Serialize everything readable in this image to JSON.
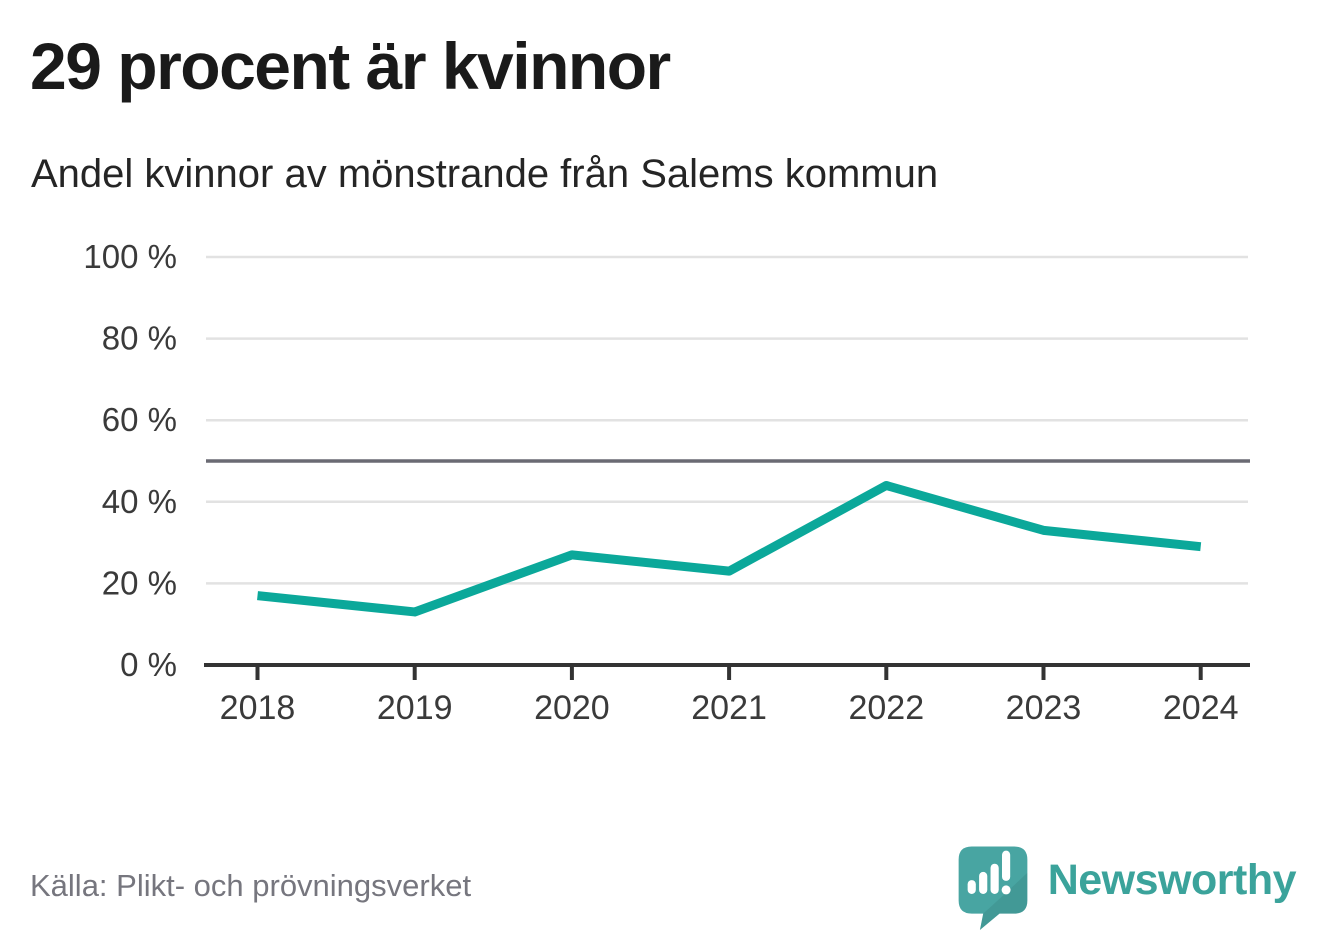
{
  "header": {
    "title": "29 procent är kvinnor",
    "subtitle": "Andel kvinnor av mönstrande från Salems kommun"
  },
  "chart_data": {
    "type": "line",
    "x": [
      "2018",
      "2019",
      "2020",
      "2021",
      "2022",
      "2023",
      "2024"
    ],
    "series": [
      {
        "name": "Andel kvinnor",
        "values": [
          17,
          13,
          27,
          23,
          44,
          33,
          29
        ]
      }
    ],
    "unit": "%",
    "title": "29 procent är kvinnor",
    "subtitle": "Andel kvinnor av mönstrande från Salems kommun",
    "xlabel": "",
    "ylabel": "",
    "ylim": [
      0,
      100
    ],
    "yticks": [
      0,
      20,
      40,
      60,
      80,
      100
    ],
    "ytick_labels": [
      "0 %",
      "20 %",
      "40 %",
      "60 %",
      "80 %",
      "100 %"
    ],
    "reference_line": 50,
    "grid": true,
    "legend": "none"
  },
  "colors": {
    "line": "#0ba89a",
    "gridline": "#e2e2e2",
    "axis": "#333333",
    "reference_line": "#6a6a73",
    "tick_text": "#3a3a3a",
    "source_text": "#76767e",
    "logo_teal": "#48a5a2",
    "logo_text_teal": "#3ba39b"
  },
  "footer": {
    "source": "Källa: Plikt- och prövningsverket",
    "brand": "Newsworthy"
  }
}
